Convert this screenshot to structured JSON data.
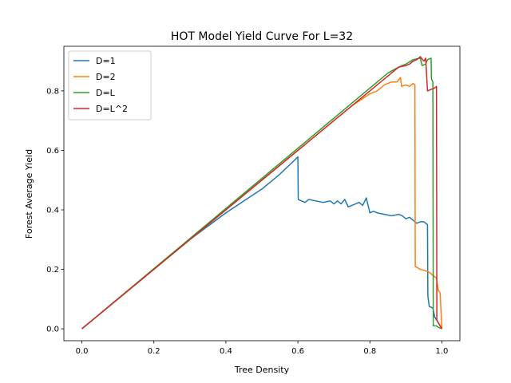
{
  "chart_data": {
    "type": "line",
    "title": "HOT Model Yield Curve For L=32",
    "xlabel": "Tree Density",
    "ylabel": "Forest Average Yield",
    "xlim": [
      -0.05,
      1.05
    ],
    "ylim": [
      -0.04,
      0.95
    ],
    "xticks": [
      0.0,
      0.2,
      0.4,
      0.6,
      0.8,
      1.0
    ],
    "yticks": [
      0.0,
      0.2,
      0.4,
      0.6,
      0.8
    ],
    "grid": false,
    "legend_position": "top-left",
    "series": [
      {
        "name": "D=1",
        "color": "#1f77b4",
        "points": [
          [
            0,
            0
          ],
          [
            0.3,
            0.3
          ],
          [
            0.4,
            0.39
          ],
          [
            0.5,
            0.47
          ],
          [
            0.55,
            0.52
          ],
          [
            0.6,
            0.578
          ],
          [
            0.601,
            0.435
          ],
          [
            0.61,
            0.43
          ],
          [
            0.62,
            0.425
          ],
          [
            0.63,
            0.435
          ],
          [
            0.65,
            0.43
          ],
          [
            0.67,
            0.425
          ],
          [
            0.69,
            0.43
          ],
          [
            0.7,
            0.42
          ],
          [
            0.71,
            0.43
          ],
          [
            0.72,
            0.42
          ],
          [
            0.73,
            0.435
          ],
          [
            0.74,
            0.41
          ],
          [
            0.75,
            0.415
          ],
          [
            0.76,
            0.42
          ],
          [
            0.77,
            0.425
          ],
          [
            0.78,
            0.415
          ],
          [
            0.79,
            0.44
          ],
          [
            0.8,
            0.39
          ],
          [
            0.81,
            0.395
          ],
          [
            0.82,
            0.39
          ],
          [
            0.84,
            0.385
          ],
          [
            0.86,
            0.38
          ],
          [
            0.88,
            0.385
          ],
          [
            0.89,
            0.38
          ],
          [
            0.9,
            0.37
          ],
          [
            0.91,
            0.375
          ],
          [
            0.92,
            0.365
          ],
          [
            0.93,
            0.355
          ],
          [
            0.94,
            0.36
          ],
          [
            0.95,
            0.36
          ],
          [
            0.96,
            0.35
          ],
          [
            0.961,
            0.11
          ],
          [
            0.965,
            0.075
          ],
          [
            0.975,
            0.07
          ],
          [
            0.98,
            0.04
          ],
          [
            0.99,
            0.02
          ],
          [
            1.0,
            0.0
          ]
        ]
      },
      {
        "name": "D=2",
        "color": "#ff7f0e",
        "points": [
          [
            0,
            0
          ],
          [
            0.75,
            0.75
          ],
          [
            0.8,
            0.79
          ],
          [
            0.82,
            0.8
          ],
          [
            0.84,
            0.82
          ],
          [
            0.86,
            0.83
          ],
          [
            0.875,
            0.83
          ],
          [
            0.885,
            0.845
          ],
          [
            0.888,
            0.815
          ],
          [
            0.9,
            0.82
          ],
          [
            0.91,
            0.815
          ],
          [
            0.92,
            0.825
          ],
          [
            0.925,
            0.82
          ],
          [
            0.926,
            0.21
          ],
          [
            0.94,
            0.2
          ],
          [
            0.955,
            0.195
          ],
          [
            0.965,
            0.19
          ],
          [
            0.975,
            0.18
          ],
          [
            0.985,
            0.17
          ],
          [
            0.99,
            0.13
          ],
          [
            0.995,
            0.12
          ],
          [
            1.0,
            0.0
          ]
        ]
      },
      {
        "name": "D=L",
        "color": "#2ca02c",
        "points": [
          [
            0,
            0
          ],
          [
            0.85,
            0.86
          ],
          [
            0.88,
            0.88
          ],
          [
            0.9,
            0.89
          ],
          [
            0.92,
            0.905
          ],
          [
            0.94,
            0.91
          ],
          [
            0.945,
            0.885
          ],
          [
            0.955,
            0.89
          ],
          [
            0.96,
            0.905
          ],
          [
            0.97,
            0.91
          ],
          [
            0.971,
            0.84
          ],
          [
            0.975,
            0.83
          ],
          [
            0.976,
            0.01
          ],
          [
            0.985,
            0.01
          ],
          [
            0.99,
            0.005
          ],
          [
            1.0,
            0.0
          ]
        ]
      },
      {
        "name": "D=L^2",
        "color": "#d62728",
        "points": [
          [
            0,
            0
          ],
          [
            0.88,
            0.88
          ],
          [
            0.9,
            0.885
          ],
          [
            0.91,
            0.89
          ],
          [
            0.92,
            0.9
          ],
          [
            0.93,
            0.905
          ],
          [
            0.94,
            0.915
          ],
          [
            0.95,
            0.9
          ],
          [
            0.955,
            0.91
          ],
          [
            0.96,
            0.8
          ],
          [
            0.97,
            0.805
          ],
          [
            0.98,
            0.81
          ],
          [
            0.985,
            0.815
          ],
          [
            0.986,
            0.03
          ],
          [
            0.99,
            0.02
          ],
          [
            1.0,
            0.0
          ]
        ]
      }
    ]
  }
}
